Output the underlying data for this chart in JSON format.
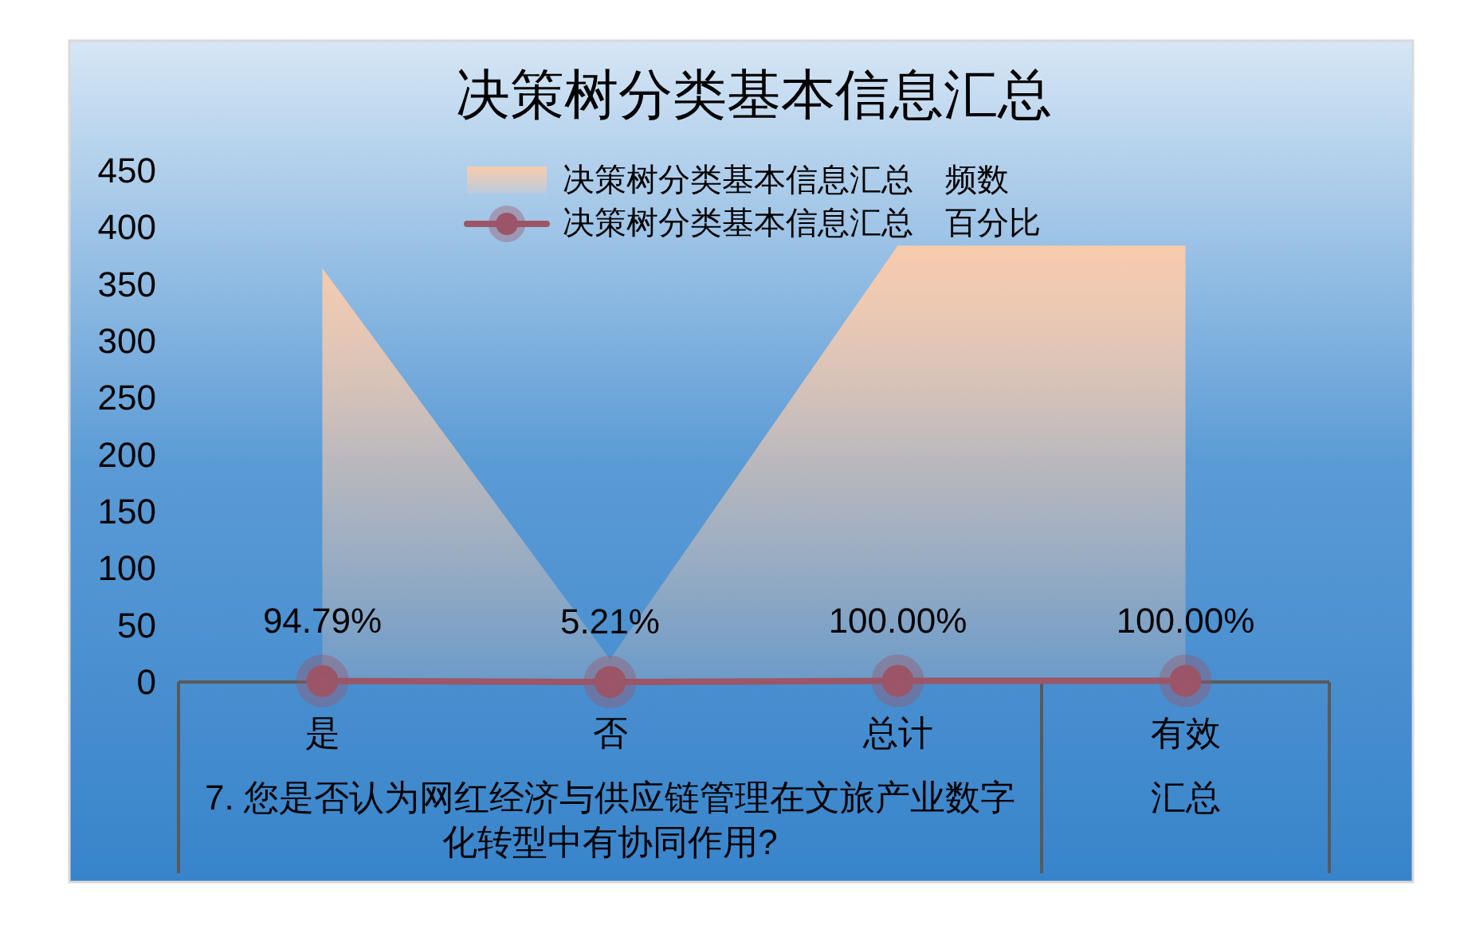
{
  "chart_data": {
    "type": "area",
    "title": "决策树分类基本信息汇总",
    "categories": [
      "是",
      "否",
      "总计",
      "有效"
    ],
    "series": [
      {
        "name": "决策树分类基本信息汇总　频数",
        "color": "#f8cbad",
        "values": [
          364,
          20,
          384,
          384
        ]
      },
      {
        "name": "决策树分类基本信息汇总　百分比",
        "type": "line",
        "color": "#9c5668",
        "marker": "circle",
        "values": [
          0.9479,
          0.0521,
          1,
          1
        ],
        "value_labels": [
          "94.79%",
          "5.21%",
          "100.00%",
          "100.00%"
        ]
      }
    ],
    "ylim": [
      0,
      450
    ],
    "yticks": [
      0,
      50,
      100,
      150,
      200,
      250,
      300,
      350,
      400,
      450
    ],
    "legend": "top",
    "annotations": [
      "7. 您是否认为网红经济与供应链管理在文旅产业数字化转型中有协同作用?",
      "汇总"
    ]
  }
}
